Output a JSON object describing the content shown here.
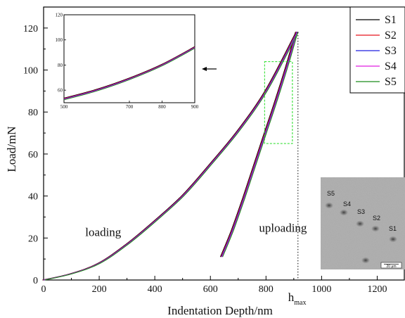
{
  "chart_data": {
    "type": "line",
    "xlabel": "Indentation Depth/nm",
    "ylabel": "Load/mN",
    "xlim": [
      0,
      1300
    ],
    "ylim": [
      0,
      130
    ],
    "x_ticks": [
      0,
      200,
      400,
      600,
      800,
      1000,
      1200
    ],
    "y_ticks": [
      0,
      20,
      40,
      60,
      80,
      100,
      120
    ],
    "grid": false,
    "legend_position": "top-right",
    "series": [
      {
        "name": "S1",
        "color": "#000000"
      },
      {
        "name": "S2",
        "color": "#e8141c"
      },
      {
        "name": "S3",
        "color": "#1f1fe0"
      },
      {
        "name": "S4",
        "color": "#e01ee0"
      },
      {
        "name": "S5",
        "color": "#1a8c1a"
      }
    ],
    "loading_curve": {
      "x": [
        0,
        100,
        200,
        300,
        400,
        500,
        600,
        700,
        800,
        900,
        910
      ],
      "y": [
        0,
        3,
        8,
        17,
        28,
        40,
        55,
        71,
        90,
        115,
        118
      ]
    },
    "unloading_curve": {
      "x": [
        640,
        680,
        720,
        760,
        800,
        840,
        880,
        910
      ],
      "y": [
        11,
        24,
        39,
        55,
        71,
        87,
        104,
        118
      ]
    },
    "hmax": {
      "x": 915,
      "label": "h",
      "subscript": "max"
    },
    "annotations": [
      {
        "text": "loading",
        "x": 150,
        "y": 21
      },
      {
        "text": "uploading",
        "x": 775,
        "y": 23
      }
    ],
    "zoom_box": {
      "x": [
        795,
        895
      ],
      "y": [
        65,
        104
      ]
    },
    "inset": {
      "xlim": [
        500,
        900
      ],
      "ylim": [
        50,
        120
      ],
      "x_ticks": [
        500,
        700,
        800,
        900
      ],
      "y_ticks": [
        60,
        80,
        100,
        120
      ],
      "x": [
        500,
        600,
        700,
        800,
        900
      ],
      "y": [
        53,
        60,
        69,
        80,
        94
      ]
    },
    "micrograph": {
      "labels": [
        "S5",
        "S4",
        "S3",
        "S2",
        "S1"
      ],
      "scale_bar": "20 μm"
    }
  }
}
